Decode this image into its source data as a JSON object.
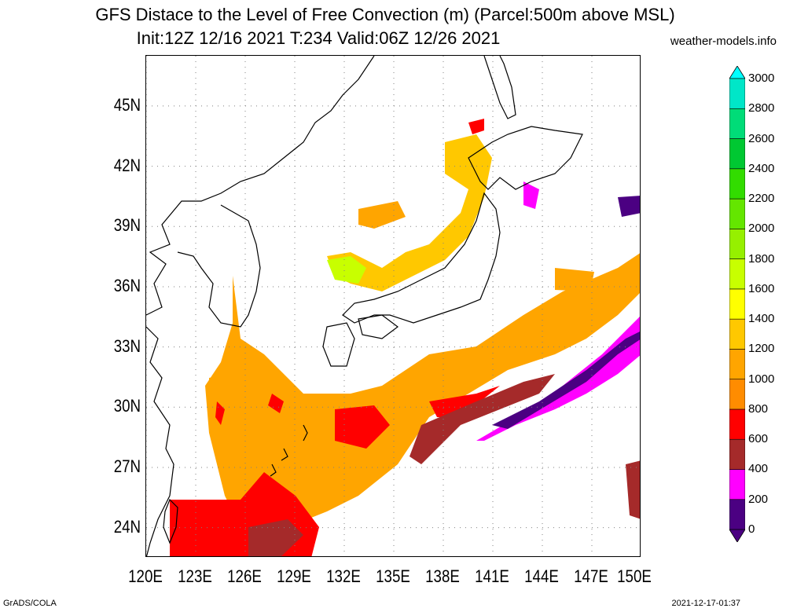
{
  "title_line1": "GFS Distace to the Level of Free Convection (m) (Parcel:500m above MSL)",
  "title_line2": "Init:12Z 12/16 2021 T:234 Valid:06Z 12/26 2021",
  "site": "weather-models.info",
  "footer_left": "GrADS/COLA",
  "footer_right": "2021-12-17-01:37",
  "map": {
    "lon_range": [
      120,
      150
    ],
    "lat_range": [
      22.5,
      47.5
    ],
    "lon_ticks": [
      "120E",
      "123E",
      "126E",
      "129E",
      "132E",
      "135E",
      "138E",
      "141E",
      "144E",
      "147E",
      "150E"
    ],
    "lat_ticks": [
      "24N",
      "27N",
      "30N",
      "33N",
      "36N",
      "39N",
      "42N",
      "45N"
    ],
    "grid": true,
    "coastlines": true
  },
  "colorbar": {
    "labels": [
      "0",
      "200",
      "400",
      "600",
      "800",
      "1000",
      "1200",
      "1400",
      "1600",
      "1800",
      "2000",
      "2200",
      "2400",
      "2600",
      "2800",
      "3000"
    ],
    "colors": [
      "#4b0082",
      "#ff00ff",
      "#a52a2a",
      "#ff0000",
      "#ff8c00",
      "#ffa500",
      "#ffc800",
      "#ffff00",
      "#c8ff00",
      "#96f000",
      "#64e600",
      "#32dc00",
      "#00c832",
      "#00dc78",
      "#00e6c8",
      "#00ffff"
    ],
    "arrow_low_color": "#4b0082",
    "arrow_high_color": "#00ffff"
  }
}
